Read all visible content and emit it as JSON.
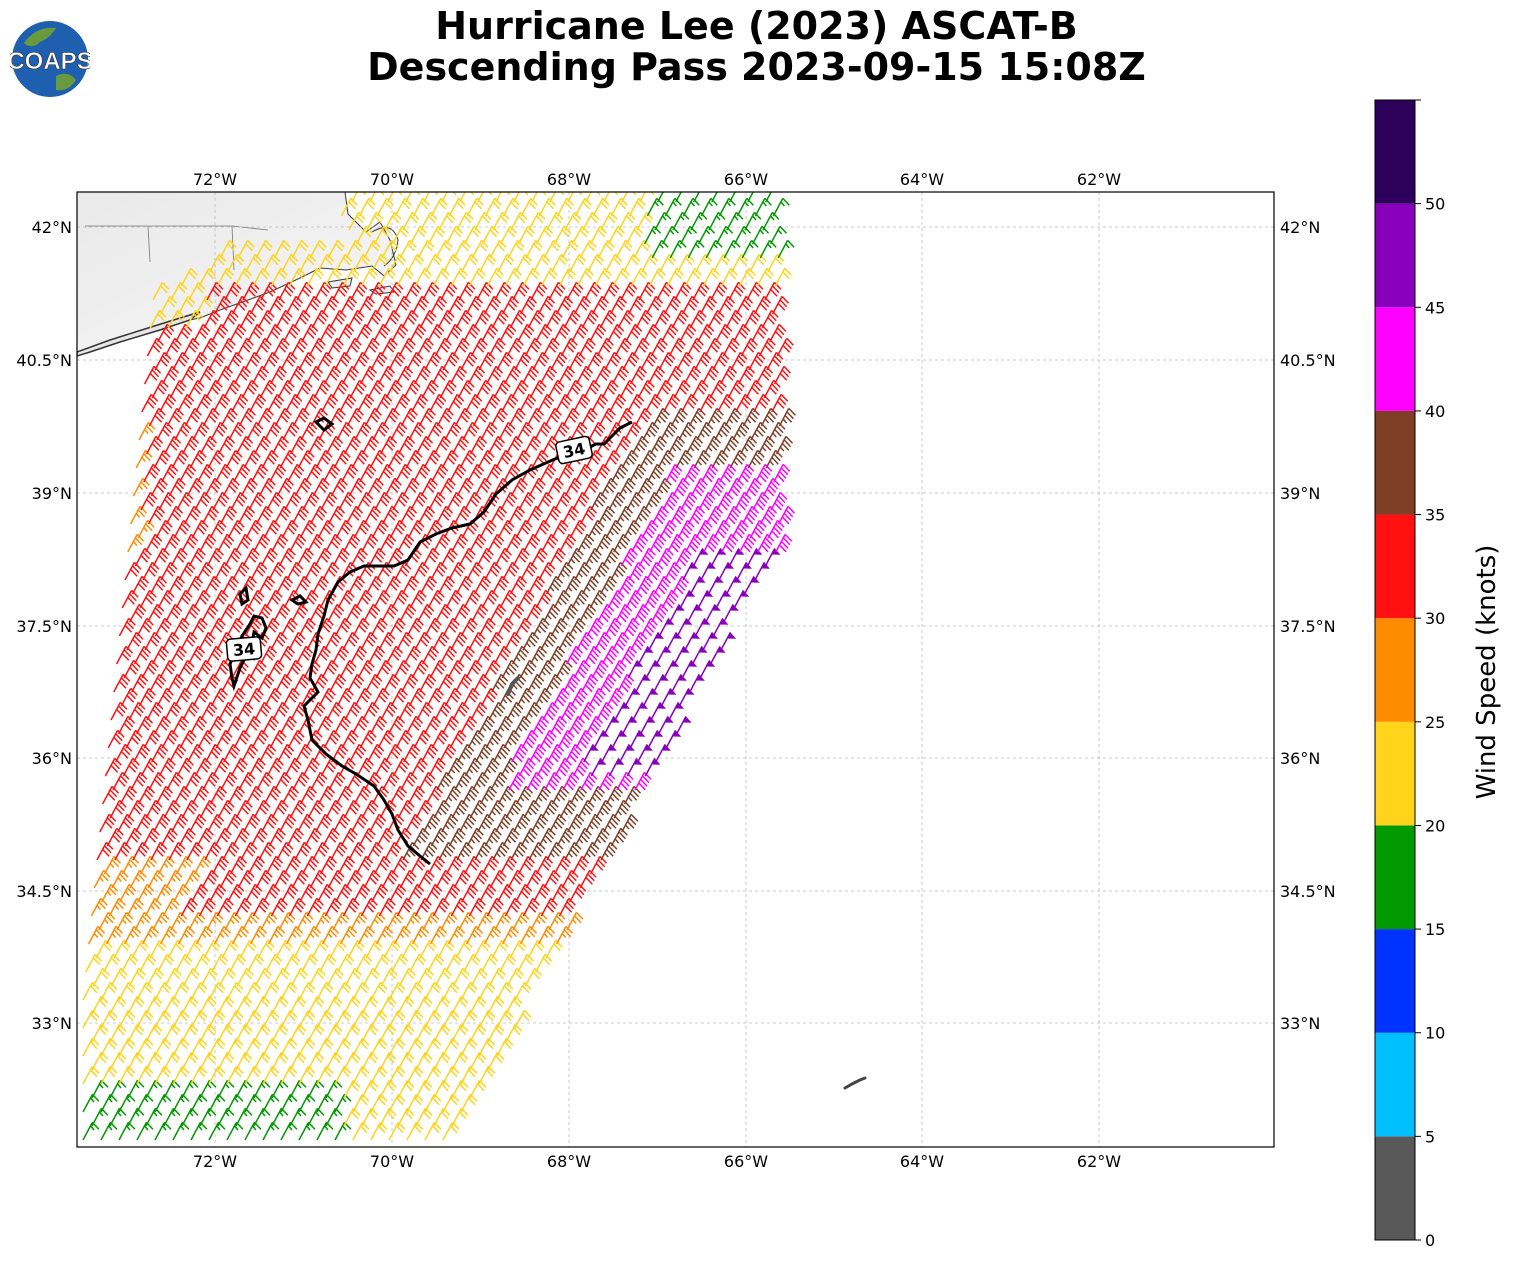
{
  "title": {
    "line1": "Hurricane Lee (2023) ASCAT-B",
    "line2": "Descending Pass 2023-09-15 15:08Z"
  },
  "logo": {
    "text": "COAPS",
    "icon": "globe-logo-icon"
  },
  "map": {
    "lon_ticks": [
      "72°W",
      "70°W",
      "68°W",
      "66°W",
      "64°W",
      "62°W"
    ],
    "lat_ticks": [
      "42°N",
      "40.5°N",
      "39°N",
      "37.5°N",
      "36°N",
      "34.5°N",
      "33°N"
    ],
    "contour_label": "34",
    "grid": "dashed"
  },
  "colorbar": {
    "label": "Wind Speed (knots)",
    "ticks": [
      "0",
      "5",
      "10",
      "15",
      "20",
      "25",
      "30",
      "35",
      "40",
      "45",
      "50"
    ],
    "colors": [
      "#595959",
      "#00bfff",
      "#0033ff",
      "#009900",
      "#ffd41a",
      "#ff8c00",
      "#ff1111",
      "#7f3f26",
      "#ff00ff",
      "#8800bb",
      "#2d005c"
    ]
  }
}
